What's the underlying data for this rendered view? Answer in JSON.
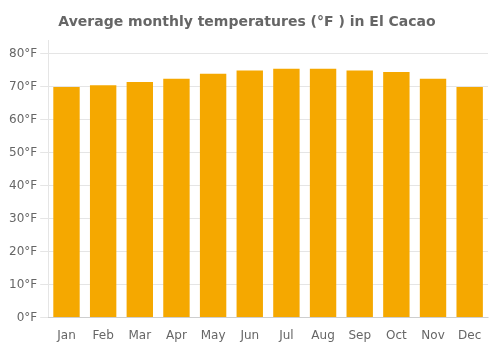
{
  "chart_data": {
    "type": "bar",
    "title": "Average monthly temperatures (°F ) in El Cacao",
    "categories": [
      "Jan",
      "Feb",
      "Mar",
      "Apr",
      "May",
      "Jun",
      "Jul",
      "Aug",
      "Sep",
      "Oct",
      "Nov",
      "Dec"
    ],
    "values": [
      70.0,
      70.5,
      71.5,
      72.5,
      74.0,
      75.0,
      75.5,
      75.5,
      75.0,
      74.5,
      72.5,
      70.0
    ],
    "color": "#F5A800",
    "ylim": [
      0,
      84
    ],
    "yticks": [
      {
        "value": 0,
        "label": "0°F"
      },
      {
        "value": 10,
        "label": "10°F"
      },
      {
        "value": 20,
        "label": "20°F"
      },
      {
        "value": 30,
        "label": "30°F"
      },
      {
        "value": 40,
        "label": "40°F"
      },
      {
        "value": 50,
        "label": "50°F"
      },
      {
        "value": 60,
        "label": "60°F"
      },
      {
        "value": 70,
        "label": "70°F"
      },
      {
        "value": 80,
        "label": "80°F"
      }
    ],
    "grid": true
  }
}
